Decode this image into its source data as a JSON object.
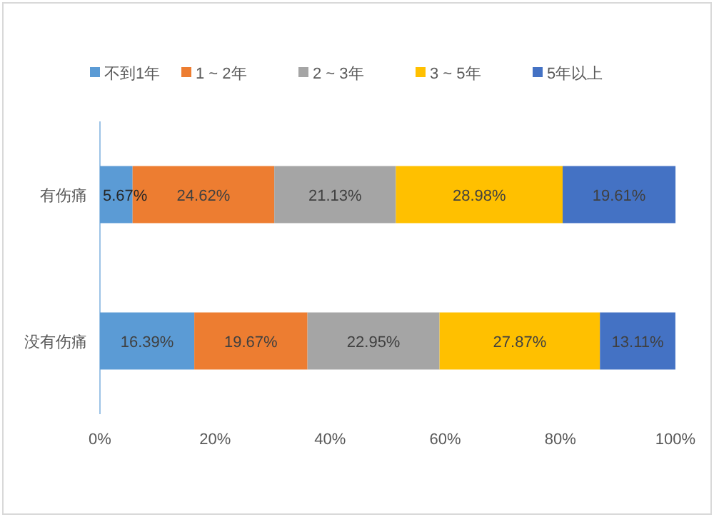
{
  "chart_data": {
    "type": "bar",
    "orientation": "horizontal",
    "stacked": true,
    "legend": "top",
    "grid": false,
    "categories": [
      "有伤痛",
      "没有伤痛"
    ],
    "xlim": [
      0,
      100
    ],
    "xticks": [
      {
        "value": 0,
        "label": "0%"
      },
      {
        "value": 20,
        "label": "20%"
      },
      {
        "value": 40,
        "label": "40%"
      },
      {
        "value": 60,
        "label": "60%"
      },
      {
        "value": 80,
        "label": "80%"
      },
      {
        "value": 100,
        "label": "100%"
      }
    ],
    "series": [
      {
        "name": "不到1年",
        "color": "#5b9bd5",
        "values": [
          5.67,
          16.39
        ],
        "value_labels": [
          "5.67%",
          "16.39%"
        ]
      },
      {
        "name": "1 ~ 2年",
        "color": "#ed7d31",
        "values": [
          24.62,
          19.67
        ],
        "value_labels": [
          "24.62%",
          "19.67%"
        ]
      },
      {
        "name": "2 ~ 3年",
        "color": "#a5a5a5",
        "values": [
          21.13,
          22.95
        ],
        "value_labels": [
          "21.13%",
          "22.95%"
        ]
      },
      {
        "name": "3 ~ 5年",
        "color": "#ffc000",
        "values": [
          28.98,
          27.87
        ],
        "value_labels": [
          "28.98%",
          "27.87%"
        ]
      },
      {
        "name": "5年以上",
        "color": "#4472c4",
        "values": [
          19.61,
          13.11
        ],
        "value_labels": [
          "19.61%",
          "13.11%"
        ]
      }
    ]
  }
}
